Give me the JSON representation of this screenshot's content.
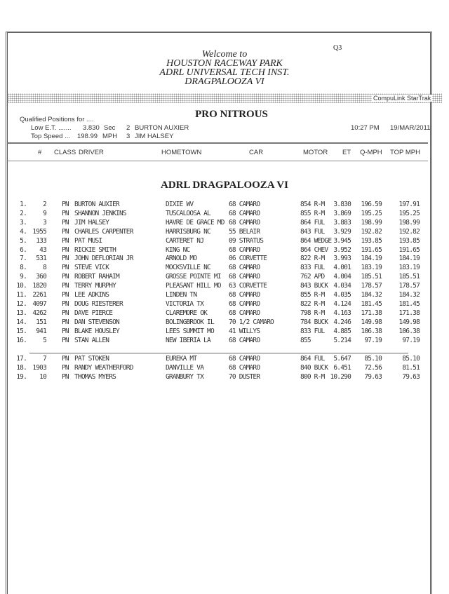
{
  "page_code": "Q3",
  "welcome": [
    "Welcome to",
    "HOUSTON RACEWAY PARK",
    "ADRL UNIVERSAL TECH INST.",
    "DRAGPALOOZA VI"
  ],
  "vendor": "CompuLink StarTrak",
  "class_title": "PRO NITROUS",
  "qualified_label": "Qualified Positions for ....",
  "low_et": {
    "label": "Low E.T. .......",
    "value": "3.830",
    "unit": "Sec",
    "car": "2",
    "driver": "BURTON AUXIER"
  },
  "top_speed": {
    "label": "Top Speed ...",
    "value": "198.99",
    "unit": "MPH",
    "car": "3",
    "driver": "JIM HALSEY"
  },
  "time": "10:27 PM",
  "date": "19/MAR/2011",
  "columns": [
    "#",
    "CLASS",
    "DRIVER",
    "HOMETOWN",
    "CAR",
    "MOTOR",
    "ET",
    "Q-MPH",
    "TOP MPH"
  ],
  "event_title": "ADRL DRAGPALOOZA VI",
  "rows": [
    [
      "1.",
      "2",
      "PN",
      "BURTON AUXIER",
      "DIXIE WV",
      "68 CAMARO",
      "854 R-M",
      "3.830",
      "196.59",
      "197.91"
    ],
    [
      "2.",
      "9",
      "PN",
      "SHANNON JENKINS",
      "TUSCALOOSA AL",
      "68 CAMARO",
      "855 R-M",
      "3.869",
      "195.25",
      "195.25"
    ],
    [
      "3.",
      "3",
      "PN",
      "JIM HALSEY",
      "HAVRE DE GRACE MD",
      "68 CAMARO",
      "864 FUL",
      "3.883",
      "198.99",
      "198.99"
    ],
    [
      "4.",
      "1955",
      "PN",
      "CHARLES CARPENTER",
      "HARRISBURG  NC",
      "55 BELAIR",
      "843 FUL",
      "3.929",
      "192.82",
      "192.82"
    ],
    [
      "5.",
      "133",
      "PN",
      "PAT MUSI",
      "CARTERET NJ",
      "09 STRATUS",
      "864 WEDGE",
      "3.945",
      "193.85",
      "193.85"
    ],
    [
      "6.",
      "43",
      "PN",
      "RICKIE SMITH",
      "KING  NC",
      "68 CAMARO",
      "864 CHEV",
      "3.952",
      "191.65",
      "191.65"
    ],
    [
      "7.",
      "531",
      "PN",
      "JOHN DEFLORIAN JR",
      "ARNOLD  MO",
      "06 CORVETTE",
      "822 R-M",
      "3.993",
      "184.19",
      "184.19"
    ],
    [
      "8.",
      "8",
      "PN",
      "STEVE VICK",
      "MOCKSVILLE NC",
      "68 CAMARO",
      "833 FUL",
      "4.001",
      "183.19",
      "183.19"
    ],
    [
      "9.",
      "360",
      "PN",
      "ROBERT RAHAIM",
      "GROSSE POINTE MI",
      "68 CAMARO",
      "762 APD",
      "4.004",
      "185.51",
      "185.51"
    ],
    [
      "10.",
      "1820",
      "PN",
      "TERRY MURPHY",
      "PLEASANT HILL  MO",
      "63 CORVETTE",
      "843 BUCK",
      "4.034",
      "178.57",
      "178.57"
    ],
    [
      "11.",
      "2261",
      "PN",
      "LEE ADKINS",
      "LINDEN TN",
      "68 CAMARO",
      "855 R-M",
      "4.035",
      "184.32",
      "184.32"
    ],
    [
      "12.",
      "4097",
      "PN",
      "DOUG RIESTERER",
      "VICTORIA  TX",
      "68 CAMARO",
      "822 R-M",
      "4.124",
      "181.45",
      "181.45"
    ],
    [
      "13.",
      "4262",
      "PN",
      "DAVE PIERCE",
      "CLAREMORE  OK",
      "68 CAMARO",
      "798 R-M",
      "4.163",
      "171.38",
      "171.38"
    ],
    [
      "14.",
      "151",
      "PN",
      "DAN STEVENSON",
      "BOLINGBROOK IL",
      "70 1/2 CAMARO",
      "784 BUCK",
      "4.246",
      "149.98",
      "149.98"
    ],
    [
      "15.",
      "941",
      "PN",
      "BLAKE HOUSLEY",
      "LEES SUMMIT MO",
      "41 WILLYS",
      "833 FUL",
      "4.885",
      "106.38",
      "106.38"
    ],
    [
      "16.",
      "5",
      "PN",
      "STAN ALLEN",
      "NEW IBERIA LA",
      "68 CAMARO",
      "855",
      "5.214",
      "97.19",
      "97.19"
    ],
    [
      "17.",
      "7",
      "PN",
      "PAT STOKEN",
      "EUREKA  MT",
      "68 CAMARO",
      "864 FUL",
      "5.647",
      "85.10",
      "85.10"
    ],
    [
      "18.",
      "1903",
      "PN",
      "RANDY WEATHERFORD",
      "DANVILLE  VA",
      "68 CAMARO",
      "840 BUCK",
      "6.451",
      "72.56",
      "81.51"
    ],
    [
      "19.",
      "10",
      "PN",
      "THOMAS MYERS",
      "GRANBURY  TX",
      "70 DUSTER",
      "800 R-M",
      "10.290",
      "79.63",
      "79.63"
    ]
  ]
}
